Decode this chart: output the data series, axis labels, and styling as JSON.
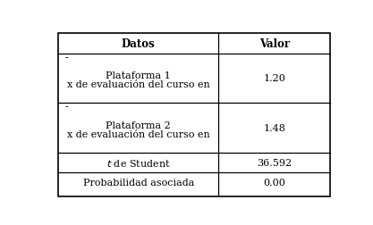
{
  "col_headers": [
    "Datos",
    "Valor"
  ],
  "rows": [
    {
      "dash": "-",
      "center_lines": [
        "x de evaluación del curso en",
        "Plataforma 1"
      ],
      "valor": "1.20",
      "tall": true
    },
    {
      "dash": "-",
      "center_lines": [
        "x de evaluación del curso en",
        "Plataforma 2"
      ],
      "valor": "1.48",
      "tall": true
    },
    {
      "center_lines": [
        "t_italic de Student"
      ],
      "valor": "36.592",
      "tall": false
    },
    {
      "center_lines": [
        "Probabilidad asociada"
      ],
      "valor": "0.00",
      "tall": false
    }
  ],
  "col_split": 0.595,
  "bg_color": "#ffffff",
  "border_color": "#000000",
  "header_fontsize": 8.5,
  "cell_fontsize": 8.0,
  "fig_width": 4.17,
  "fig_height": 2.53,
  "dpi": 100
}
